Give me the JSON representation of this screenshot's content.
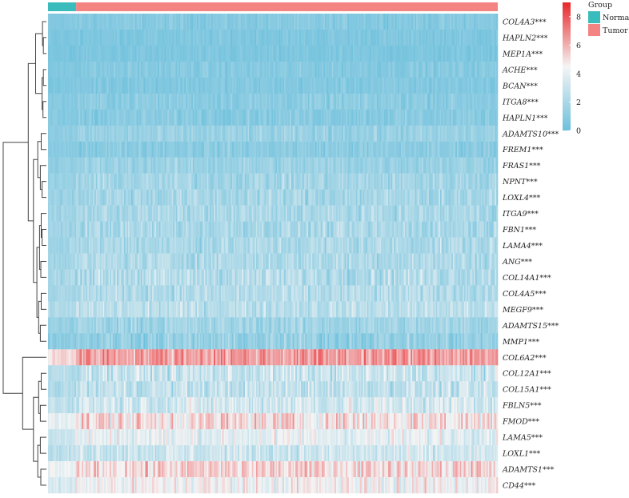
{
  "chart_data": {
    "type": "heatmap",
    "genes": [
      {
        "label": "COL4A3***",
        "mean": 0.8,
        "spread": 0.5
      },
      {
        "label": "HAPLN2***",
        "mean": 0.6,
        "spread": 0.4
      },
      {
        "label": "MEP1A***",
        "mean": 0.5,
        "spread": 0.4
      },
      {
        "label": "ACHE***",
        "mean": 0.8,
        "spread": 0.5
      },
      {
        "label": "BCAN***",
        "mean": 0.7,
        "spread": 0.5
      },
      {
        "label": "ITGA8***",
        "mean": 1.0,
        "spread": 0.6
      },
      {
        "label": "HAPLN1***",
        "mean": 0.9,
        "spread": 0.6
      },
      {
        "label": "ADAMTS10***",
        "mean": 1.4,
        "spread": 0.7
      },
      {
        "label": "FREM1***",
        "mean": 1.0,
        "spread": 0.6
      },
      {
        "label": "FRAS1***",
        "mean": 1.5,
        "spread": 0.7
      },
      {
        "label": "NPNT***",
        "mean": 1.8,
        "spread": 0.9
      },
      {
        "label": "LOXL4***",
        "mean": 1.9,
        "spread": 1.0
      },
      {
        "label": "ITGA9***",
        "mean": 2.0,
        "spread": 0.9
      },
      {
        "label": "FBN1***",
        "mean": 2.0,
        "spread": 1.0
      },
      {
        "label": "LAMA4***",
        "mean": 2.1,
        "spread": 1.0
      },
      {
        "label": "ANG***",
        "mean": 2.2,
        "spread": 1.0
      },
      {
        "label": "COL14A1***",
        "mean": 2.4,
        "spread": 1.2
      },
      {
        "label": "COL4A5***",
        "mean": 2.3,
        "spread": 1.0
      },
      {
        "label": "MEGF9***",
        "mean": 2.6,
        "spread": 1.0
      },
      {
        "label": "ADAMTS15***",
        "mean": 1.7,
        "spread": 0.9
      },
      {
        "label": "MMP1***",
        "mean": 1.3,
        "spread": 1.0
      },
      {
        "label": "COL6A2***",
        "mean": 6.5,
        "spread": 1.2
      },
      {
        "label": "COL12A1***",
        "mean": 3.0,
        "spread": 1.3
      },
      {
        "label": "COL15A1***",
        "mean": 2.8,
        "spread": 1.2
      },
      {
        "label": "FBLN5***",
        "mean": 3.4,
        "spread": 1.4
      },
      {
        "label": "FMOD***",
        "mean": 5.0,
        "spread": 1.5
      },
      {
        "label": "LAMA5***",
        "mean": 4.0,
        "spread": 1.1
      },
      {
        "label": "LOXL1***",
        "mean": 3.2,
        "spread": 1.1
      },
      {
        "label": "ADAMTS1***",
        "mean": 5.2,
        "spread": 1.3
      },
      {
        "label": "CD44***",
        "mean": 4.4,
        "spread": 1.2
      }
    ],
    "samples": {
      "normal_fraction": 0.0625,
      "n_columns": 320
    },
    "color_scale": {
      "min": 0,
      "mid": 4.5,
      "max": 9,
      "low_color": "#6ec0dc",
      "mid_color": "#f5f5f5",
      "high_color": "#e8272b",
      "ticks": [
        0,
        2,
        4,
        6,
        8
      ]
    },
    "legend": {
      "title": "Group",
      "entries": [
        {
          "name": "Normal",
          "color": "#3bbcbc"
        },
        {
          "name": "Tumor",
          "color": "#f48482"
        }
      ]
    }
  }
}
